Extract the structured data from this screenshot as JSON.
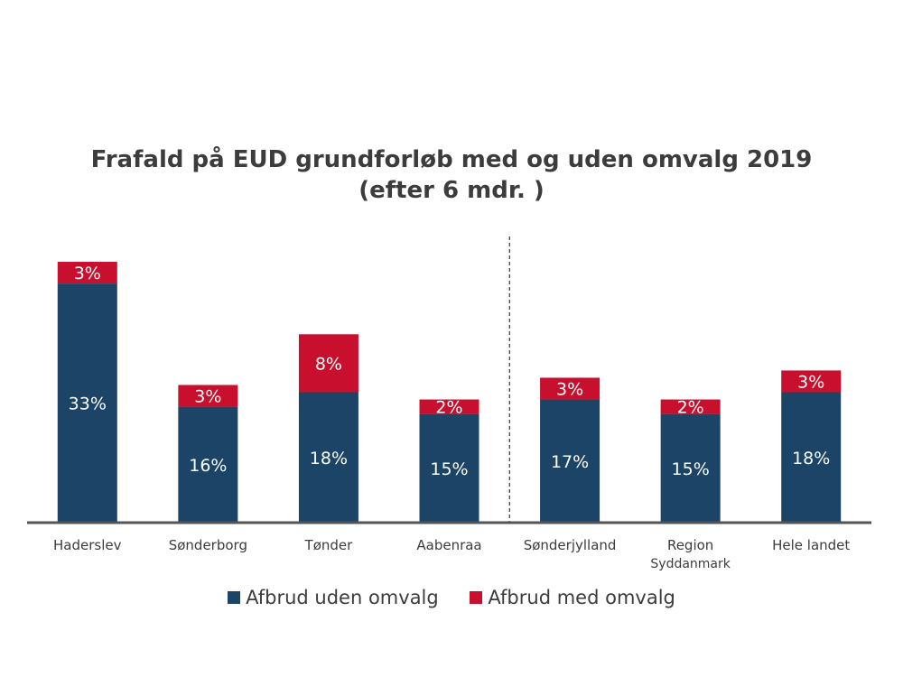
{
  "chart_data": {
    "type": "bar",
    "stacked": true,
    "title": "Frafald på EUD grundforløb med og uden omvalg 2019",
    "subtitle": "(efter 6 mdr. )",
    "categories": [
      "Haderslev",
      "Sønderborg",
      "Tønder",
      "Aabenraa",
      "Sønderjylland",
      "Region Syddanmark",
      "Hele landet"
    ],
    "category_labels": [
      [
        "Haderslev"
      ],
      [
        "Sønderborg"
      ],
      [
        "Tønder"
      ],
      [
        "Aabenraa"
      ],
      [
        "Sønderjylland"
      ],
      [
        "Region",
        "Syddanmark"
      ],
      [
        "Hele landet"
      ]
    ],
    "series": [
      {
        "name": "Afbrud uden omvalg",
        "color": "#1b4467",
        "values": [
          33,
          16,
          18,
          15,
          17,
          15,
          18
        ],
        "labels": [
          "33%",
          "16%",
          "18%",
          "15%",
          "17%",
          "15%",
          "18%"
        ]
      },
      {
        "name": "Afbrud med omvalg",
        "color": "#c8102e",
        "values": [
          3,
          3,
          8,
          2,
          3,
          2,
          3
        ],
        "labels": [
          "3%",
          "3%",
          "8%",
          "2%",
          "3%",
          "2%",
          "3%"
        ]
      }
    ],
    "ylim": [
      0,
      37
    ],
    "separator_after_category": "Aabenraa",
    "xlabel": "",
    "ylabel": "",
    "grid": false,
    "legend_position": "bottom"
  }
}
